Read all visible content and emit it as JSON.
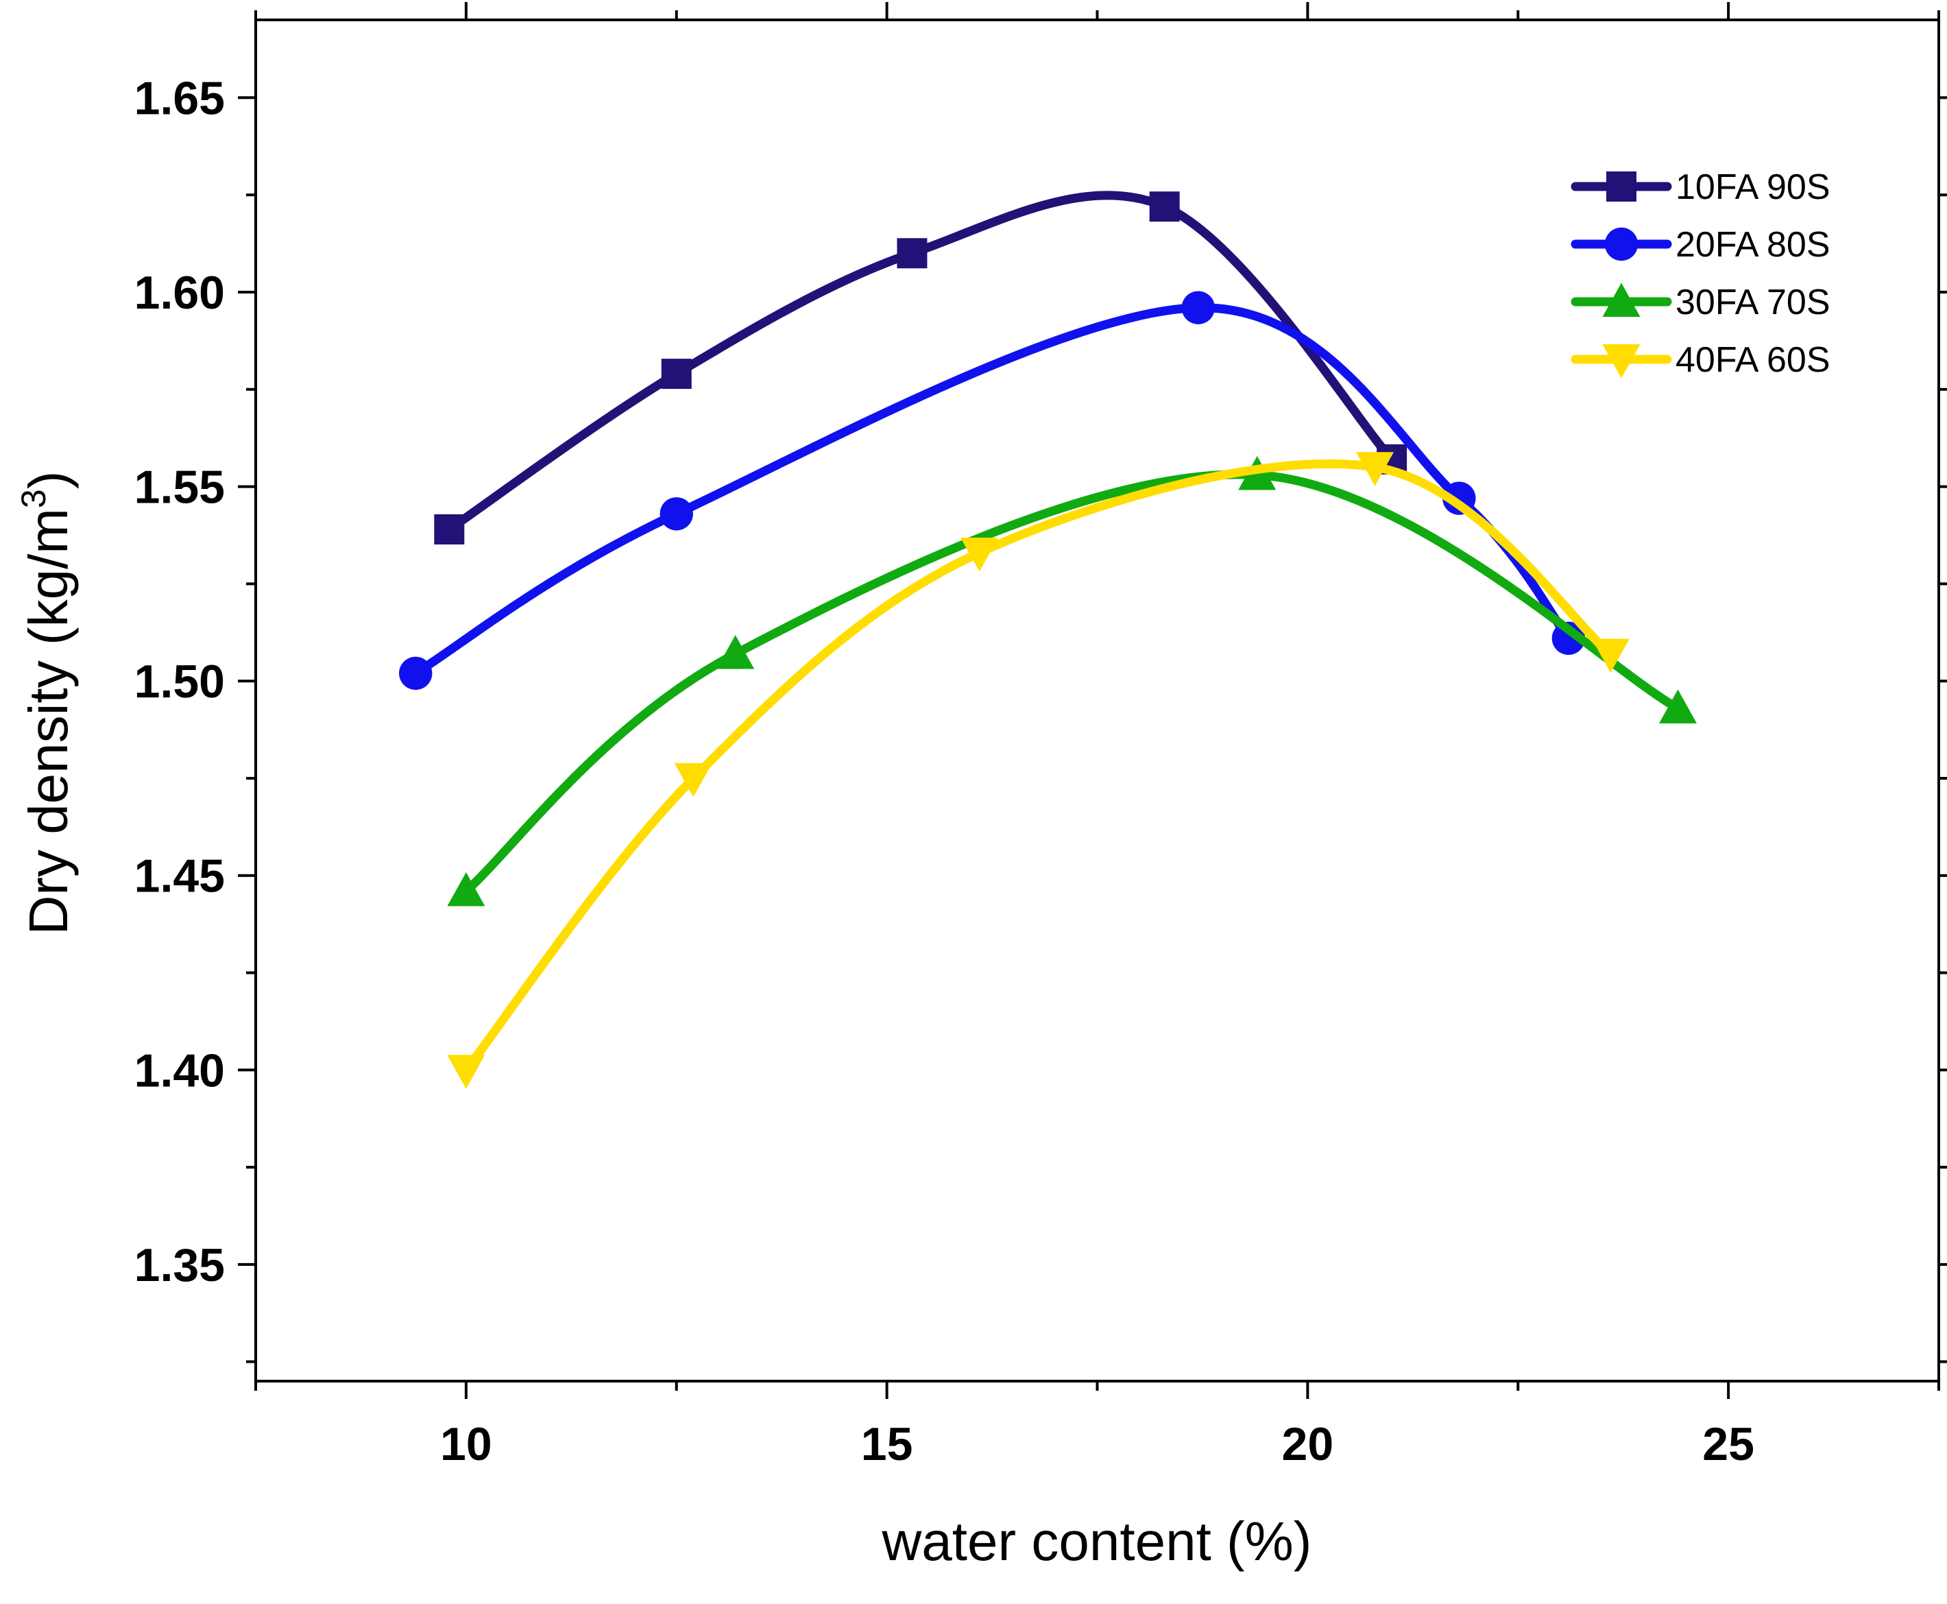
{
  "chart_data": {
    "type": "line",
    "xlabel": "water content (%)",
    "ylabel_main": "Dry density (kg/m",
    "ylabel_sup": "3",
    "ylabel_close": ")",
    "xlim": [
      7.5,
      27.5
    ],
    "ylim": [
      1.32,
      1.67
    ],
    "x_ticks": [
      10,
      15,
      20,
      25
    ],
    "x_tick_labels": [
      "10",
      "15",
      "20",
      "25"
    ],
    "x_minor_ticks": [
      7.5,
      12.5,
      17.5,
      22.5,
      27.5
    ],
    "y_ticks": [
      1.35,
      1.4,
      1.45,
      1.5,
      1.55,
      1.6,
      1.65
    ],
    "y_tick_labels": [
      "1.35",
      "1.40",
      "1.45",
      "1.50",
      "1.55",
      "1.60",
      "1.65"
    ],
    "y_minor_ticks": [
      1.325,
      1.375,
      1.425,
      1.475,
      1.525,
      1.575,
      1.625
    ],
    "legend_position": "top-right",
    "series": [
      {
        "name": "10FA 90S",
        "color": "#221177",
        "marker": "square",
        "x": [
          9.8,
          12.5,
          15.3,
          18.3,
          21.0
        ],
        "y": [
          1.539,
          1.579,
          1.61,
          1.622,
          1.557
        ]
      },
      {
        "name": "20FA 80S",
        "color": "#1111ee",
        "marker": "circle",
        "x": [
          9.4,
          12.5,
          18.7,
          21.8,
          23.1
        ],
        "y": [
          1.502,
          1.543,
          1.596,
          1.547,
          1.511
        ]
      },
      {
        "name": "30FA 70S",
        "color": "#11aa11",
        "marker": "triangle-up",
        "x": [
          10.0,
          13.2,
          19.4,
          24.4
        ],
        "y": [
          1.446,
          1.507,
          1.553,
          1.493
        ]
      },
      {
        "name": "40FA 60S",
        "color": "#ffdd00",
        "marker": "triangle-down",
        "x": [
          10.0,
          12.7,
          16.1,
          20.8,
          23.6
        ],
        "y": [
          1.4,
          1.475,
          1.533,
          1.555,
          1.507
        ]
      }
    ]
  }
}
